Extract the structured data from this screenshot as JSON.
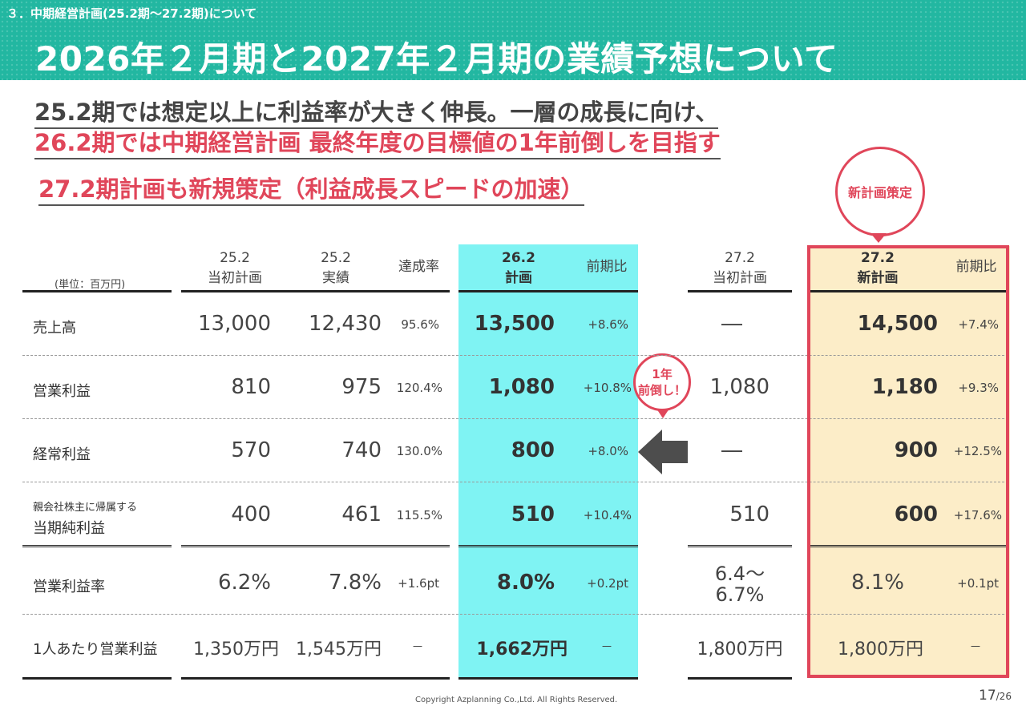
{
  "header": {
    "section": "３．中期経営計画(25.2期～27.2期)について",
    "title": "2026年２月期と2027年２月期の業績予想について"
  },
  "lead": {
    "line1": "25.2期では想定以上に利益率が大きく伸長。一層の成長に向け、",
    "line2": "26.2期では中期経営計画 最終年度の目標値の1年前倒しを目指す",
    "line3": "27.2期計画も新規策定（利益成長スピードの加速）"
  },
  "callouts": {
    "new_plan": "新計画策定",
    "advance_l1": "1年",
    "advance_l2": "前倒し！"
  },
  "table": {
    "unit": "(単位：百万円)",
    "headers": {
      "c1": [
        "25.2",
        "当初計画"
      ],
      "c2": [
        "25.2",
        "実績"
      ],
      "c3": "達成率",
      "c4": [
        "26.2",
        "計画"
      ],
      "c5": "前期比",
      "c6": [
        "27.2",
        "当初計画"
      ],
      "c7": [
        "27.2",
        "新計画"
      ],
      "c8": "前期比"
    },
    "rows": [
      {
        "label": "売上高",
        "sublabel": "",
        "plan25": "13,000",
        "act25": "12,430",
        "rate": "95.6%",
        "plan26": "13,500",
        "yoy26": "+8.6%",
        "orig27": "―",
        "new27": "14,500",
        "yoy27": "+7.4%"
      },
      {
        "label": "営業利益",
        "sublabel": "",
        "plan25": "810",
        "act25": "975",
        "rate": "120.4%",
        "plan26": "1,080",
        "yoy26": "+10.8%",
        "orig27": "1,080",
        "new27": "1,180",
        "yoy27": "+9.3%"
      },
      {
        "label": "経常利益",
        "sublabel": "",
        "plan25": "570",
        "act25": "740",
        "rate": "130.0%",
        "plan26": "800",
        "yoy26": "+8.0%",
        "orig27": "―",
        "new27": "900",
        "yoy27": "+12.5%"
      },
      {
        "label": "当期純利益",
        "sublabel": "親会社株主に帰属する",
        "plan25": "400",
        "act25": "461",
        "rate": "115.5%",
        "plan26": "510",
        "yoy26": "+10.4%",
        "orig27": "510",
        "new27": "600",
        "yoy27": "+17.6%"
      },
      {
        "label": "営業利益率",
        "sublabel": "",
        "plan25": "6.2%",
        "act25": "7.8%",
        "rate": "+1.6pt",
        "plan26": "8.0%",
        "yoy26": "+0.2pt",
        "orig27_l1": "6.4～",
        "orig27_l2": "6.7%",
        "new27": "8.1%",
        "yoy27": "+0.1pt"
      },
      {
        "label": "1人あたり営業利益",
        "sublabel": "",
        "plan25": "1,350万円",
        "act25": "1,545万円",
        "rate": "－",
        "plan26": "1,662万円",
        "yoy26": "－",
        "orig27": "1,800万円",
        "new27": "1,800万円",
        "yoy27": "－"
      }
    ]
  },
  "footer": {
    "copyright": "Copyright Azplanning Co.,Ltd. All Rights Reserved.",
    "page": "17",
    "total": "/26"
  },
  "colors": {
    "header_bg": "#22b7a1",
    "accent_red": "#e0465a",
    "highlight_cyan": "#7ff3f3",
    "highlight_beige": "#fcedc8"
  }
}
